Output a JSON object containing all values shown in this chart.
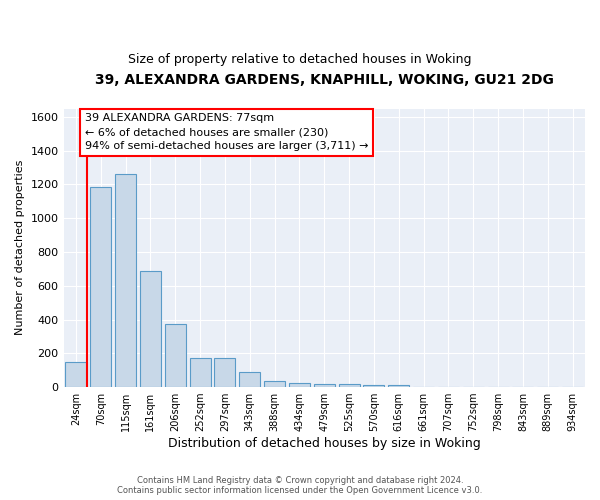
{
  "title1": "39, ALEXANDRA GARDENS, KNAPHILL, WOKING, GU21 2DG",
  "title2": "Size of property relative to detached houses in Woking",
  "xlabel": "Distribution of detached houses by size in Woking",
  "ylabel": "Number of detached properties",
  "bins": [
    "24sqm",
    "70sqm",
    "115sqm",
    "161sqm",
    "206sqm",
    "252sqm",
    "297sqm",
    "343sqm",
    "388sqm",
    "434sqm",
    "479sqm",
    "525sqm",
    "570sqm",
    "616sqm",
    "661sqm",
    "707sqm",
    "752sqm",
    "798sqm",
    "843sqm",
    "889sqm",
    "934sqm"
  ],
  "values": [
    150,
    1185,
    1265,
    685,
    375,
    170,
    170,
    88,
    35,
    25,
    20,
    20,
    13,
    13,
    0,
    0,
    0,
    0,
    0,
    0,
    0
  ],
  "bar_color": "#c8d8e8",
  "bar_edge_color": "#5a9bc8",
  "annotation_text": "39 ALEXANDRA GARDENS: 77sqm\n← 6% of detached houses are smaller (230)\n94% of semi-detached houses are larger (3,711) →",
  "annotation_box_color": "white",
  "annotation_box_edge": "red",
  "ylim": [
    0,
    1650
  ],
  "yticks": [
    0,
    200,
    400,
    600,
    800,
    1000,
    1200,
    1400,
    1600
  ],
  "background_color": "#eaeff7",
  "grid_color": "white",
  "footer1": "Contains HM Land Registry data © Crown copyright and database right 2024.",
  "footer2": "Contains public sector information licensed under the Open Government Licence v3.0."
}
